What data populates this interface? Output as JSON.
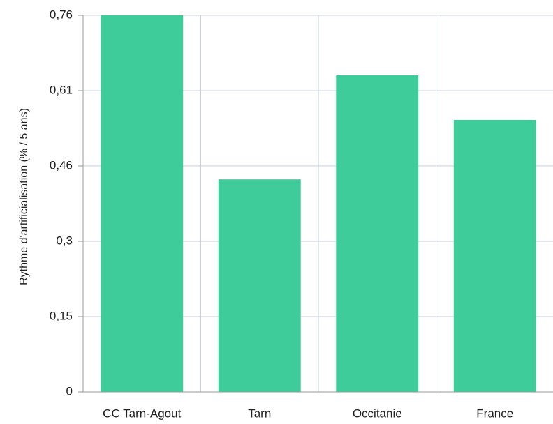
{
  "chart_data": {
    "type": "bar",
    "y_label": "Rythme d'artificialisation (% / 5 ans)",
    "categories": [
      "CC Tarn-Agout",
      "Tarn",
      "Occitanie",
      "France"
    ],
    "values": [
      0.76,
      0.429,
      0.639,
      0.549
    ],
    "color": "#3ecc9a",
    "ylim": [
      0,
      0.76
    ],
    "yticks": [
      0,
      {
        "value": 0.152,
        "label": "0,15"
      },
      {
        "value": 0.304,
        "label": "0,3"
      },
      {
        "value": 0.456,
        "label": "0,46"
      },
      {
        "value": 0.608,
        "label": "0,61"
      },
      {
        "value": 0.76,
        "label": "0,76"
      }
    ],
    "grid": true
  }
}
